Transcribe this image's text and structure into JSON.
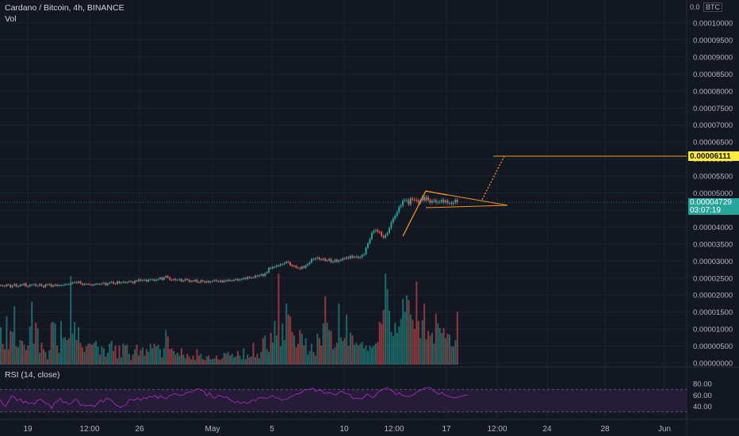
{
  "header": {
    "title": "Cardano / Bitcoin, 4h, BINANCE",
    "vol_label": "Vol",
    "rsi_label": "RSI (14, close)",
    "currency": "BTC"
  },
  "price_axis": {
    "top_label": "0.0",
    "ticks": [
      "0.00010000",
      "0.00009500",
      "0.00009000",
      "0.00008500",
      "0.00008000",
      "0.00007500",
      "0.00007000",
      "0.00006500",
      "0.00006000",
      "0.00005500",
      "0.00005000",
      "0.00004500",
      "0.00004000",
      "0.00003500",
      "0.00003000",
      "0.00002500",
      "0.00002000",
      "0.00001500",
      "0.00001000",
      "0.00000500",
      "0.00000000"
    ]
  },
  "rsi_axis": {
    "ticks": [
      "80.00",
      "60.00",
      "40.00"
    ]
  },
  "time_axis": {
    "labels": [
      "19",
      "12:00",
      "26",
      "May",
      "5",
      "10",
      "12:00",
      "17",
      "12:00",
      "24",
      "28",
      "Jun"
    ]
  },
  "target_label": {
    "text": "0.00006111",
    "color": "#f5e642"
  },
  "current_label": {
    "price": "0.00004729",
    "countdown": "03:07:19",
    "color": "#26a69a"
  },
  "colors": {
    "up": "#26a69a",
    "down": "#ef5350",
    "drawing": "#f7931a",
    "rsi": "#9c27b0",
    "rsi_band": "#2a1f3d"
  },
  "chart_data": {
    "type": "candlestick",
    "title": "Cardano / Bitcoin, 4h, BINANCE",
    "y_unit": "BTC",
    "ylim": [
      0,
      0.000104
    ],
    "x_labels": [
      "19",
      "12:00",
      "26",
      "May",
      "5",
      "10",
      "12:00",
      "17",
      "12:00",
      "24",
      "28",
      "Jun"
    ],
    "series": [
      {
        "name": "price_close",
        "values": [
          2.29e-05,
          2.27e-05,
          2.26e-05,
          2.31e-05,
          2.3e-05,
          2.23e-05,
          2.28e-05,
          2.32e-05,
          2.25e-05,
          2.26e-05,
          2.31e-05,
          2.29e-05,
          2.34e-05,
          2.26e-05,
          2.25e-05,
          2.3e-05,
          2.3e-05,
          2.32e-05,
          2.27e-05,
          2.27e-05,
          2.32e-05,
          2.27e-05,
          2.23e-05,
          2.31e-05,
          2.3e-05,
          2.32e-05,
          2.25e-05,
          2.28e-05,
          2.31e-05,
          2.27e-05,
          2.29e-05,
          2.29e-05,
          2.29e-05,
          2.32e-05,
          2.32e-05,
          2.31e-05,
          2.34e-05,
          2.37e-05,
          2.38e-05,
          2.36e-05,
          2.4e-05,
          2.34e-05,
          2.3e-05,
          2.33e-05,
          2.32e-05,
          2.32e-05,
          2.31e-05,
          2.29e-05,
          2.31e-05,
          2.33e-05,
          2.33e-05,
          2.32e-05,
          2.34e-05,
          2.36e-05,
          2.29e-05,
          2.34e-05,
          2.37e-05,
          2.39e-05,
          2.34e-05,
          2.33e-05,
          2.4e-05,
          2.35e-05,
          2.37e-05,
          2.39e-05,
          2.36e-05,
          2.38e-05,
          2.41e-05,
          2.39e-05,
          2.35e-05,
          2.42e-05,
          2.41e-05,
          2.46e-05,
          2.42e-05,
          2.44e-05,
          2.45e-05,
          2.4e-05,
          2.45e-05,
          2.46e-05,
          2.46e-05,
          2.42e-05,
          2.45e-05,
          2.47e-05,
          2.51e-05,
          2.45e-05,
          2.52e-05,
          2.56e-05,
          2.52e-05,
          2.45e-05,
          2.44e-05,
          2.47e-05,
          2.44e-05,
          2.44e-05,
          2.47e-05,
          2.4e-05,
          2.42e-05,
          2.47e-05,
          2.45e-05,
          2.39e-05,
          2.42e-05,
          2.41e-05,
          2.45e-05,
          2.38e-05,
          2.37e-05,
          2.43e-05,
          2.4e-05,
          2.37e-05,
          2.41e-05,
          2.37e-05,
          2.4e-05,
          2.41e-05,
          2.44e-05,
          2.41e-05,
          2.39e-05,
          2.43e-05,
          2.38e-05,
          2.43e-05,
          2.41e-05,
          2.45e-05,
          2.42e-05,
          2.42e-05,
          2.45e-05,
          2.47e-05,
          2.43e-05,
          2.46e-05,
          2.47e-05,
          2.5e-05,
          2.47e-05,
          2.53e-05,
          2.5e-05,
          2.52e-05,
          2.51e-05,
          2.57e-05,
          2.55e-05,
          2.58e-05,
          2.61e-05,
          2.56e-05,
          2.64e-05,
          2.67e-05,
          2.8e-05,
          2.78e-05,
          2.83e-05,
          2.83e-05,
          2.87e-05,
          2.86e-05,
          2.91e-05,
          2.91e-05,
          2.94e-05,
          2.98e-05,
          2.96e-05,
          2.88e-05,
          2.85e-05,
          2.86e-05,
          2.81e-05,
          2.8e-05,
          2.77e-05,
          2.84e-05,
          2.8e-05,
          2.87e-05,
          2.91e-05,
          2.96e-05,
          3.06e-05,
          3.05e-05,
          3.08e-05,
          3.1e-05,
          3.05e-05,
          3.04e-05,
          3.07e-05,
          3.01e-05,
          3.02e-05,
          3.06e-05,
          2.97e-05,
          2.98e-05,
          3.04e-05,
          2.98e-05,
          3.02e-05,
          3.03e-05,
          3.08e-05,
          3.07e-05,
          3.11e-05,
          3.08e-05,
          3.15e-05,
          3.1e-05,
          3.12e-05,
          3.13e-05,
          3.09e-05,
          3.11e-05,
          3.18e-05,
          3.2e-05,
          3.39e-05,
          3.52e-05,
          3.65e-05,
          3.83e-05,
          3.89e-05,
          3.91e-05,
          3.86e-05,
          3.85e-05,
          3.74e-05,
          3.69e-05,
          3.76e-05,
          3.83e-05,
          3.97e-05,
          4.14e-05,
          4.25e-05,
          4.33e-05,
          4.44e-05,
          4.59e-05,
          4.63e-05,
          4.78e-05,
          4.79e-05,
          4.79e-05,
          4.67e-05,
          4.84e-05,
          4.81e-05,
          4.8e-05,
          4.78e-05,
          4.72e-05,
          4.78e-05,
          4.88e-05,
          4.78e-05,
          4.88e-05,
          4.79e-05,
          4.72e-05,
          4.77e-05,
          4.79e-05,
          4.72e-05,
          4.74e-05,
          4.74e-05,
          4.8e-05,
          4.73e-05,
          4.77e-05,
          4.71e-05,
          4.71e-05,
          4.68e-05,
          4.72e-05,
          4.8e-05,
          4.73e-05
        ]
      },
      {
        "name": "Vol",
        "values": [
          0.41,
          0.23,
          0.17,
          0.53,
          0.17,
          0.37,
          0.36,
          0.64,
          0.2,
          0.19,
          0.27,
          0.26,
          0.22,
          0.16,
          0.21,
          0.42,
          0.69,
          0.23,
          0.46,
          0.4,
          0.13,
          0.24,
          0.17,
          0.14,
          0.06,
          0.16,
          0.46,
          0.47,
          0.45,
          0.21,
          0.13,
          0.48,
          0.29,
          0.3,
          0.27,
          0.29,
          0.97,
          0.34,
          0.47,
          0.27,
          0.41,
          0.24,
          0.19,
          0.14,
          0.2,
          0.23,
          0.23,
          0.22,
          0.24,
          0.26,
          0.2,
          0.11,
          0.2,
          0.18,
          0.09,
          0.13,
          0.23,
          0.26,
          0.15,
          0.21,
          0.07,
          0.21,
          0.08,
          0.23,
          0.21,
          0.22,
          0.12,
          0.05,
          0.11,
          0.17,
          0.22,
          0.1,
          0.16,
          0.19,
          0.1,
          0.17,
          0.14,
          0.23,
          0.18,
          0.23,
          0.2,
          0.22,
          0.17,
          0.08,
          0.18,
          0.38,
          0.31,
          0.17,
          0.18,
          0.15,
          0.11,
          0.13,
          0.1,
          0.18,
          0.11,
          0.07,
          0.12,
          0.09,
          0.06,
          0.1,
          0.05,
          0.17,
          0.1,
          0.12,
          0.06,
          0.05,
          0.09,
          0.1,
          0.06,
          0.06,
          0.07,
          0.1,
          0.06,
          0.05,
          0.07,
          0.13,
          0.12,
          0.14,
          0.1,
          0.12,
          0.08,
          0.09,
          0.15,
          0.1,
          0.06,
          0.18,
          0.06,
          0.11,
          0.08,
          0.09,
          0.24,
          0.08,
          0.12,
          0.07,
          0.14,
          0.29,
          0.32,
          0.17,
          0.14,
          0.35,
          0.24,
          0.48,
          0.32,
          1.0,
          0.2,
          0.45,
          0.27,
          0.67,
          0.55,
          0.53,
          0.36,
          0.32,
          0.19,
          0.23,
          0.38,
          0.34,
          0.21,
          0.29,
          0.11,
          0.15,
          0.23,
          0.14,
          0.1,
          0.34,
          0.29,
          0.21,
          0.45,
          0.75,
          0.46,
          0.38,
          0.37,
          0.17,
          0.19,
          0.24,
          0.67,
          0.3,
          0.26,
          0.29,
          0.55,
          0.21,
          0.35,
          0.32,
          0.22,
          0.24,
          0.21,
          0.23,
          0.25,
          0.18,
          0.21,
          0.15,
          0.21,
          0.19,
          0.21,
          0.23,
          0.25,
          0.47,
          0.45,
          0.6,
          1.0,
          0.83,
          0.59,
          0.36,
          0.31,
          0.46,
          0.35,
          0.42,
          0.5,
          0.72,
          0.58,
          0.76,
          0.71,
          0.55,
          0.49,
          0.39,
          0.91,
          0.48,
          0.29,
          0.49,
          0.67,
          0.28,
          0.37,
          0.32,
          0.35,
          0.23,
          0.56,
          0.45,
          0.4,
          0.35,
          0.4,
          0.29,
          0.34,
          0.33,
          0.2,
          0.2,
          0.27,
          0.58,
          0.21,
          0.3,
          0.26,
          0.23,
          0.19,
          0.17,
          0.15,
          0.21,
          0.05
        ]
      },
      {
        "name": "RSI",
        "values": [
          52.7,
          43.6,
          40.1,
          49.1,
          58.8,
          56.3,
          50.1,
          53.7,
          46.4,
          49.0,
          44.6,
          46.2,
          44.1,
          50.1,
          53.2,
          48.9,
          45.4,
          43.6,
          36.5,
          46.7,
          48.9,
          54.6,
          46.4,
          47.8,
          43.4,
          46.0,
          52.2,
          51.7,
          41.6,
          42.6,
          40.8,
          41.6,
          42.0,
          39.4,
          45.5,
          51.5,
          47.3,
          54.0,
          54.0,
          49.8,
          43.8,
          40.9,
          38.2,
          41.1,
          42.5,
          52.6,
          51.4,
          51.1,
          54.9,
          51.0,
          55.3,
          53.7,
          58.0,
          56.4,
          59.4,
          54.1,
          58.9,
          55.1,
          53.3,
          58.7,
          60.8,
          62.8,
          60.3,
          59.2,
          60.8,
          64.5,
          65.3,
          65.7,
          69.0,
          71.4,
          68.7,
          67.0,
          58.6,
          64.3,
          55.9,
          54.7,
          59.4,
          58.5,
          55.8,
          57.2,
          51.8,
          49.1,
          46.2,
          48.8,
          45.0,
          48.5,
          44.9,
          47.2,
          51.8,
          49.7,
          55.5,
          55.0,
          55.4,
          53.9,
          56.8,
          59.2,
          55.1,
          55.1,
          51.2,
          52.1,
          52.6,
          56.3,
          58.4,
          61.2,
          62.8,
          64.2,
          69.0,
          69.1,
          70.7,
          72.5,
          66.3,
          68.9,
          68.6,
          63.1,
          63.5,
          64.2,
          62.1,
          60.0,
          64.2,
          67.2,
          63.7,
          62.0,
          60.9,
          53.5,
          54.3,
          54.2,
          53.1,
          57.4,
          61.8,
          58.0,
          55.4,
          60.1,
          66.8,
          68.6,
          71.6,
          73.5,
          69.1,
          66.3,
          60.5,
          64.4,
          60.0,
          58.8,
          57.0,
          58.2,
          59.9,
          65.0,
          67.4,
          69.6,
          72.9,
          73.0,
          73.5,
          67.5,
          64.6,
          61.3,
          64.9,
          60.2,
          58.7,
          56.7,
          54.9,
          55.4,
          57.6,
          58.3,
          59.4,
          60.3
        ]
      }
    ]
  }
}
